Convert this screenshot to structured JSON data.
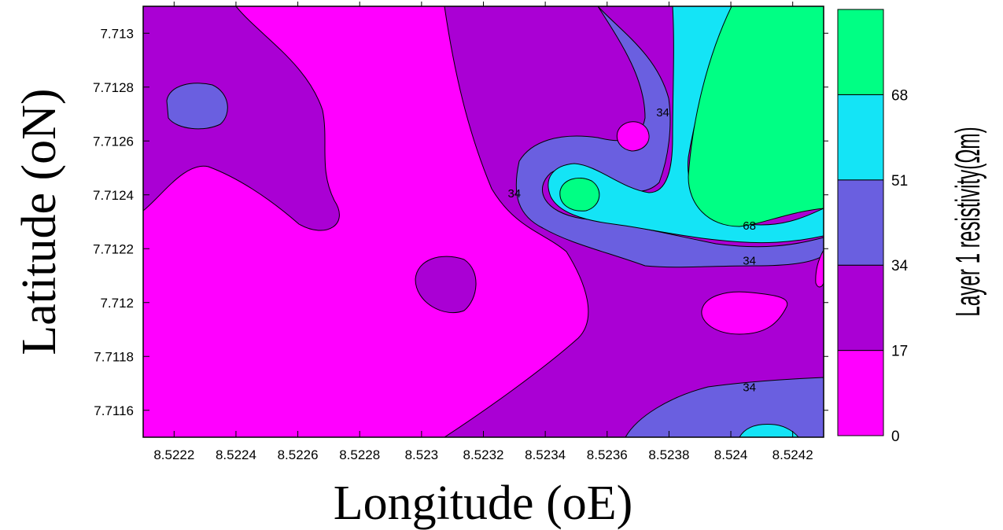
{
  "chart_data": {
    "type": "contour",
    "xlabel": "Longitude (oE)",
    "ylabel": "Latitude (oN)",
    "xlim": [
      8.5221,
      8.5243
    ],
    "ylim": [
      7.7115,
      7.7131
    ],
    "x_ticks": [
      "8.5222",
      "8.5224",
      "8.5226",
      "8.5228",
      "8.523",
      "8.5232",
      "8.5234",
      "8.5236",
      "8.5238",
      "8.524",
      "8.5242"
    ],
    "y_ticks": [
      "7.7116",
      "7.7118",
      "7.712",
      "7.7122",
      "7.7124",
      "7.7126",
      "7.7128",
      "7.713"
    ],
    "colorbar": {
      "title": "Layer 1 resistivity(Ωm)",
      "levels": [
        "0",
        "17",
        "34",
        "51",
        "68"
      ],
      "colors": [
        "#ff00ff",
        "#aa00d4",
        "#6a5fe0",
        "#14e4f6",
        "#00ff84"
      ]
    },
    "contour_labels": [
      {
        "text": "34",
        "x": 8.52378,
        "y": 7.7127
      },
      {
        "text": "34",
        "x": 8.5233,
        "y": 7.7124
      },
      {
        "text": "68",
        "x": 8.52406,
        "y": 7.71228
      },
      {
        "text": "34",
        "x": 8.52406,
        "y": 7.71215
      },
      {
        "text": "34",
        "x": 8.52406,
        "y": 7.71168
      }
    ]
  }
}
